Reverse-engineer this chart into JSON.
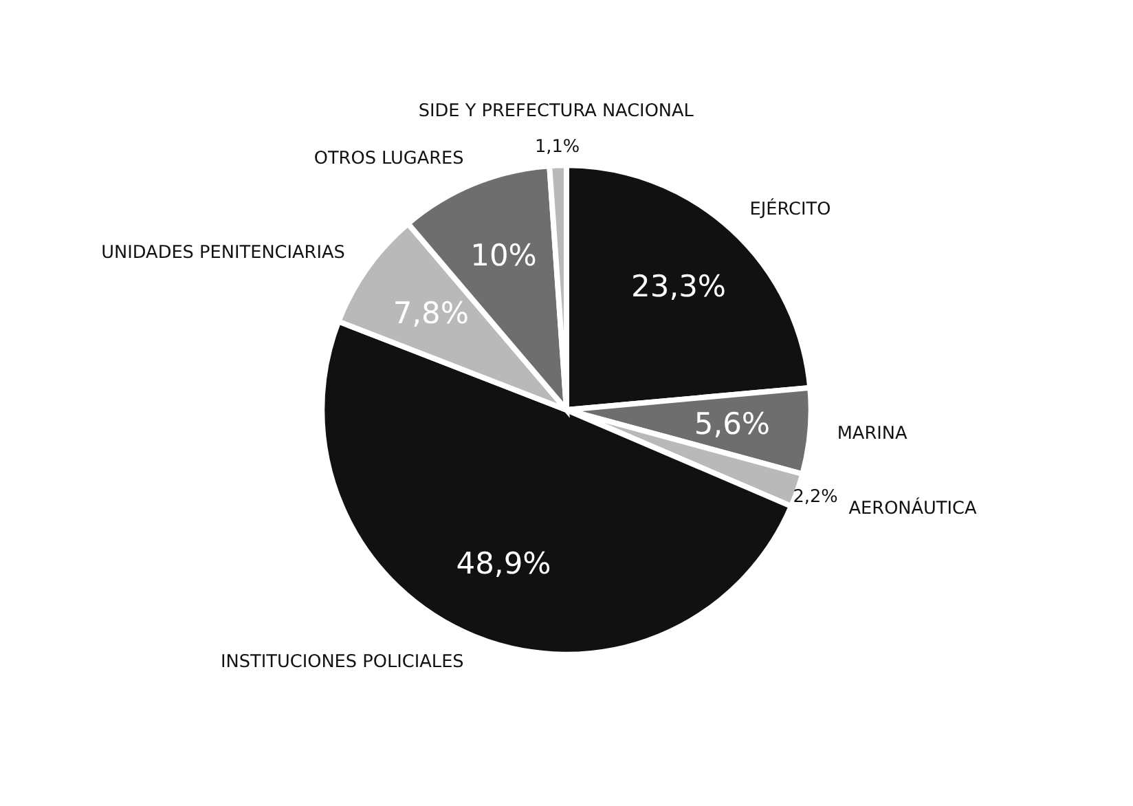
{
  "chart_data": {
    "type": "pie",
    "categories": [
      "EJÉRCITO",
      "MARINA",
      "AERONÁUTICA",
      "INSTITUCIONES POLICIALES",
      "UNIDADES PENITENCIARIAS",
      "OTROS LUGARES",
      "SIDE Y PREFECTURA NACIONAL"
    ],
    "values": [
      23.3,
      5.6,
      2.2,
      48.9,
      7.8,
      10,
      1.1
    ],
    "value_labels": [
      "23,3%",
      "5,6%",
      "2,2%",
      "48,9%",
      "7,8%",
      "10%",
      "1,1%"
    ],
    "colors": [
      "#111111",
      "#6e6e6e",
      "#b9b9b9",
      "#111111",
      "#b9b9b9",
      "#6e6e6e",
      "#b9b9b9"
    ],
    "legend": false
  }
}
